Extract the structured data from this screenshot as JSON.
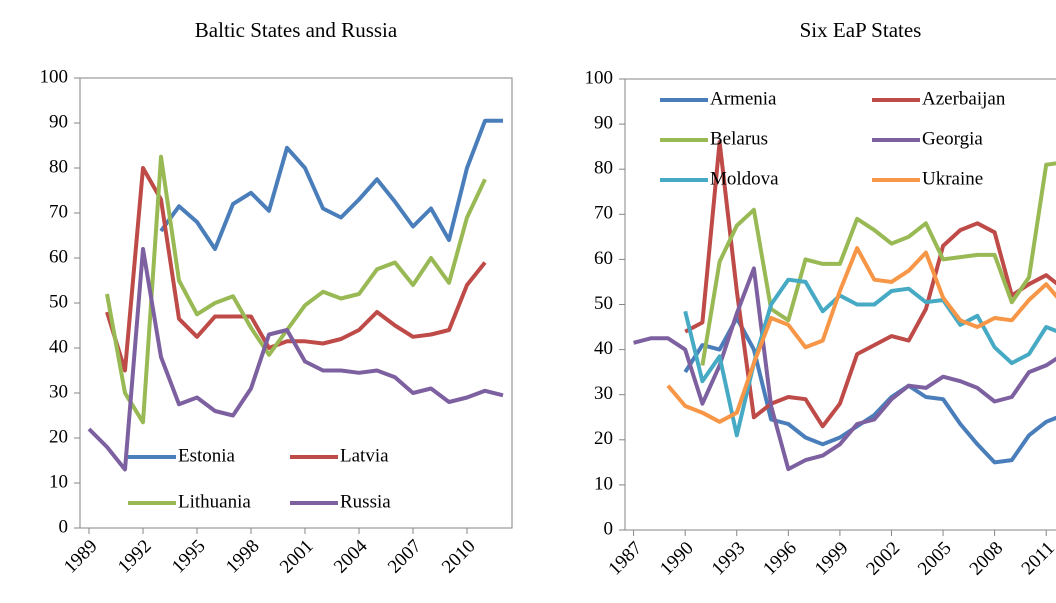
{
  "chart_data": [
    {
      "type": "line",
      "title": "Baltic States and Russia",
      "x": [
        1989,
        1990,
        1991,
        1992,
        1993,
        1994,
        1995,
        1996,
        1997,
        1998,
        1999,
        2000,
        2001,
        2002,
        2003,
        2004,
        2005,
        2006,
        2007,
        2008,
        2009,
        2010,
        2011,
        2012
      ],
      "xlim": [
        1988.5,
        2012.5
      ],
      "xticks": [
        1989,
        1992,
        1995,
        1998,
        2001,
        2004,
        2007,
        2010
      ],
      "ylim": [
        0,
        100
      ],
      "yticks": [
        0,
        10,
        20,
        30,
        40,
        50,
        60,
        70,
        80,
        90,
        100
      ],
      "legend": "bottom",
      "series": [
        {
          "name": "Estonia",
          "color": "#4a7ebb",
          "values": [
            null,
            null,
            null,
            null,
            66,
            71.5,
            68,
            62,
            72,
            74.5,
            70.5,
            84.5,
            80,
            71,
            69,
            73,
            77.5,
            72.5,
            67,
            71,
            64,
            80,
            90.5,
            90.5
          ]
        },
        {
          "name": "Latvia",
          "color": "#be4b48",
          "values": [
            null,
            48,
            35,
            80,
            73,
            46.5,
            42.5,
            47,
            47,
            47,
            40,
            41.5,
            41.5,
            41,
            42,
            44,
            48,
            45,
            42.5,
            43,
            44,
            54,
            59,
            null
          ]
        },
        {
          "name": "Lithuania",
          "color": "#98b954",
          "values": [
            null,
            52,
            30,
            23.5,
            82.5,
            55,
            47.5,
            50,
            51.5,
            44.5,
            38.5,
            44,
            49.5,
            52.5,
            51,
            52,
            57.5,
            59,
            54,
            60,
            54.5,
            69,
            77.5,
            null
          ]
        },
        {
          "name": "Russia",
          "color": "#7d60a0",
          "values": [
            22,
            18,
            13,
            62,
            38,
            27.5,
            29,
            26,
            25,
            31,
            43,
            44,
            37,
            35,
            35,
            34.5,
            35,
            33.5,
            30,
            31,
            28,
            29,
            30.5,
            29.5
          ]
        }
      ]
    },
    {
      "type": "line",
      "title": "Six EaP States",
      "x": [
        1987,
        1988,
        1989,
        1990,
        1991,
        1992,
        1993,
        1994,
        1995,
        1996,
        1997,
        1998,
        1999,
        2000,
        2001,
        2002,
        2003,
        2004,
        2005,
        2006,
        2007,
        2008,
        2009,
        2010,
        2011,
        2012
      ],
      "xlim": [
        1986.5,
        2012.5
      ],
      "xticks": [
        1987,
        1990,
        1993,
        1996,
        1999,
        2002,
        2005,
        2008,
        2011
      ],
      "ylim": [
        0,
        100
      ],
      "yticks": [
        0,
        10,
        20,
        30,
        40,
        50,
        60,
        70,
        80,
        90,
        100
      ],
      "legend": "top",
      "series": [
        {
          "name": "Armenia",
          "color": "#4a7ebb",
          "values": [
            null,
            null,
            null,
            35,
            41,
            40,
            47,
            40,
            24.5,
            23.5,
            20.5,
            19,
            20.5,
            23,
            25.5,
            29.5,
            32,
            29.5,
            29,
            23.5,
            19,
            15,
            15.5,
            21,
            24,
            25.5
          ]
        },
        {
          "name": "Azerbaijan",
          "color": "#be4b48",
          "values": [
            null,
            null,
            null,
            44,
            46,
            86,
            53,
            25,
            28,
            29.5,
            29,
            23,
            28,
            39,
            41,
            43,
            42,
            49,
            63,
            66.5,
            68,
            66,
            52,
            54.5,
            56.5,
            53.5
          ]
        },
        {
          "name": "Belarus",
          "color": "#98b954",
          "values": [
            null,
            null,
            null,
            null,
            36.5,
            59.5,
            67.5,
            71,
            49,
            46.5,
            60,
            59,
            59,
            69,
            66.5,
            63.5,
            65,
            68,
            60,
            60.5,
            61,
            61,
            50.5,
            56,
            81,
            81.5
          ]
        },
        {
          "name": "Georgia",
          "color": "#7d60a0",
          "values": [
            41.5,
            42.5,
            42.5,
            40,
            28,
            36.5,
            48,
            58,
            27.5,
            13.5,
            15.5,
            16.5,
            19,
            23.5,
            24.5,
            29,
            32,
            31.5,
            34,
            33,
            31.5,
            28.5,
            29.5,
            35,
            36.5,
            39
          ]
        },
        {
          "name": "Moldova",
          "color": "#46aac5",
          "values": [
            null,
            null,
            null,
            48.5,
            33,
            38.5,
            21,
            37,
            50,
            55.5,
            55,
            48.5,
            52,
            50,
            50,
            53,
            53.5,
            50.5,
            51,
            45.5,
            47.5,
            40.5,
            37,
            39,
            45,
            43.5
          ]
        },
        {
          "name": "Ukraine",
          "color": "#f79646",
          "values": [
            null,
            null,
            32,
            27.5,
            26,
            24,
            26,
            37,
            47,
            45.5,
            40.5,
            42,
            53,
            62.5,
            55.5,
            55,
            57.5,
            61.5,
            51.5,
            46.5,
            45,
            47,
            46.5,
            51,
            54.5,
            50
          ]
        }
      ]
    }
  ]
}
